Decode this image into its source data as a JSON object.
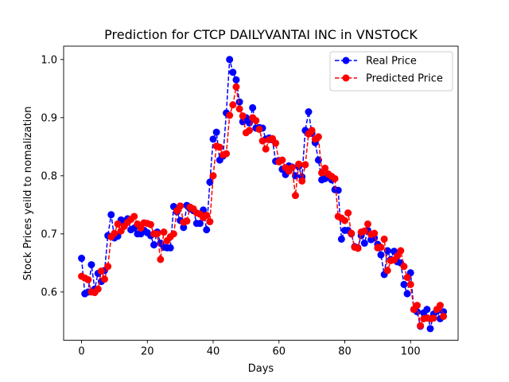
{
  "chart_data": {
    "type": "line",
    "title": "Prediction for CTCP DAILYVANTAI INC in VNSTOCK",
    "xlabel": "Days",
    "ylabel": "Stock Prices yeild to nomalization",
    "xlim": [
      -5.45,
      114.45
    ],
    "ylim": [
      0.517,
      1.023
    ],
    "xticks": [
      0,
      20,
      40,
      60,
      80,
      100
    ],
    "yticks": [
      0.6,
      0.7,
      0.8,
      0.9,
      1.0
    ],
    "ytick_labels": [
      "0.6",
      "0.7",
      "0.8",
      "0.9",
      "1.0"
    ],
    "legend_position": "upper right",
    "grid": false,
    "series": [
      {
        "name": "Real Price",
        "color": "#0000ff",
        "marker": "circle",
        "linestyle": "dashed",
        "values": [
          0.658,
          0.597,
          0.6,
          0.647,
          0.605,
          0.632,
          0.618,
          0.637,
          0.697,
          0.733,
          0.693,
          0.696,
          0.724,
          0.715,
          0.726,
          0.707,
          0.71,
          0.7,
          0.7,
          0.706,
          0.702,
          0.697,
          0.681,
          0.703,
          0.684,
          0.677,
          0.676,
          0.676,
          0.747,
          0.738,
          0.723,
          0.711,
          0.749,
          0.743,
          0.74,
          0.718,
          0.718,
          0.741,
          0.707,
          0.789,
          0.863,
          0.875,
          0.827,
          0.834,
          0.908,
          1.0,
          0.978,
          0.965,
          0.927,
          0.893,
          0.9,
          0.891,
          0.917,
          0.882,
          0.883,
          0.882,
          0.863,
          0.865,
          0.862,
          0.825,
          0.826,
          0.811,
          0.802,
          0.817,
          0.815,
          0.8,
          0.816,
          0.798,
          0.878,
          0.91,
          0.873,
          0.857,
          0.827,
          0.793,
          0.795,
          0.8,
          0.793,
          0.776,
          0.775,
          0.691,
          0.706,
          0.706,
          0.7,
          0.678,
          0.676,
          0.697,
          0.684,
          0.706,
          0.69,
          0.693,
          0.682,
          0.664,
          0.63,
          0.671,
          0.656,
          0.67,
          0.652,
          0.65,
          0.613,
          0.597,
          0.633,
          0.57,
          0.566,
          0.541,
          0.564,
          0.57,
          0.537,
          0.562,
          0.567,
          0.554,
          0.566
        ]
      },
      {
        "name": "Predicted Price",
        "color": "#ff0000",
        "marker": "circle",
        "linestyle": "dashed",
        "values": [
          0.627,
          0.624,
          0.621,
          0.6,
          0.599,
          0.605,
          0.636,
          0.622,
          0.644,
          0.695,
          0.701,
          0.717,
          0.705,
          0.713,
          0.72,
          0.725,
          0.73,
          0.717,
          0.71,
          0.719,
          0.718,
          0.716,
          0.7,
          0.7,
          0.656,
          0.703,
          0.688,
          0.695,
          0.7,
          0.74,
          0.748,
          0.72,
          0.722,
          0.746,
          0.743,
          0.736,
          0.734,
          0.728,
          0.732,
          0.721,
          0.8,
          0.851,
          0.849,
          0.836,
          0.838,
          0.904,
          0.922,
          0.953,
          0.915,
          0.903,
          0.874,
          0.878,
          0.9,
          0.895,
          0.88,
          0.86,
          0.846,
          0.862,
          0.864,
          0.856,
          0.824,
          0.827,
          0.814,
          0.808,
          0.814,
          0.766,
          0.82,
          0.791,
          0.819,
          0.872,
          0.878,
          0.863,
          0.867,
          0.805,
          0.813,
          0.803,
          0.799,
          0.795,
          0.73,
          0.727,
          0.723,
          0.736,
          0.701,
          0.677,
          0.675,
          0.703,
          0.705,
          0.717,
          0.699,
          0.701,
          0.676,
          0.677,
          0.691,
          0.637,
          0.654,
          0.655,
          0.662,
          0.671,
          0.644,
          0.625,
          0.613,
          0.57,
          0.577,
          0.542,
          0.554,
          0.555,
          0.554,
          0.555,
          0.57,
          0.577,
          0.558
        ]
      }
    ]
  }
}
